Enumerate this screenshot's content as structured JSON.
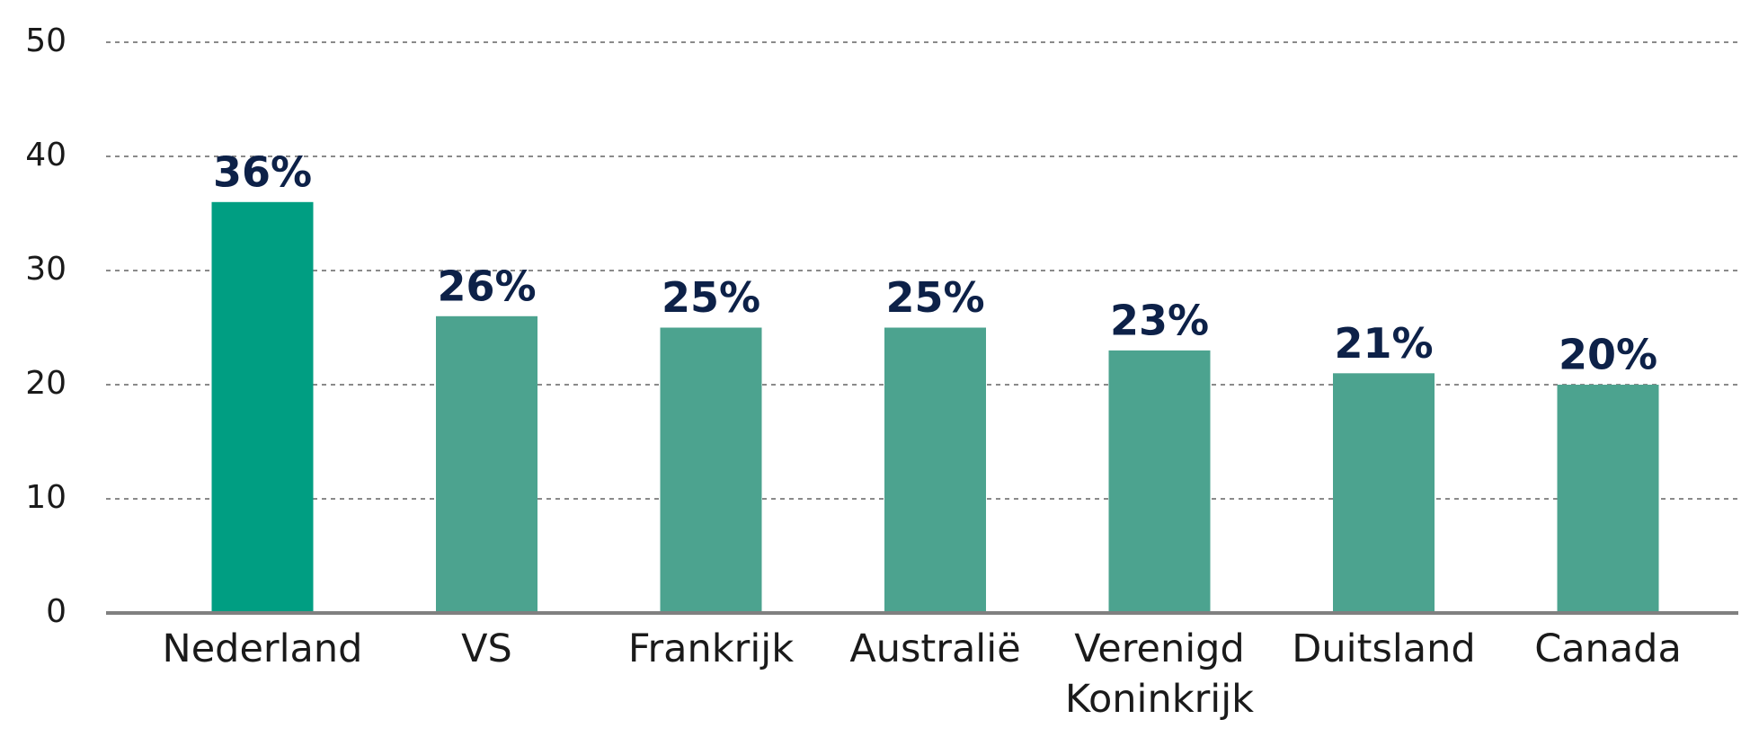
{
  "chart_data": {
    "type": "bar",
    "categories": [
      "Nederland",
      "VS",
      "Frankrijk",
      "Australië",
      "Verenigd Koninkrijk",
      "Duitsland",
      "Canada"
    ],
    "values": [
      36,
      26,
      25,
      25,
      23,
      21,
      20
    ],
    "value_labels": [
      "36%",
      "26%",
      "25%",
      "25%",
      "23%",
      "21%",
      "20%"
    ],
    "colors": [
      "#009e82",
      "#4ca38f",
      "#4ca38f",
      "#4ca38f",
      "#4ca38f",
      "#4ca38f",
      "#4ca38f"
    ],
    "ylim": [
      0,
      50
    ],
    "yticks": [
      0,
      10,
      20,
      30,
      40,
      50
    ],
    "grid": true
  }
}
